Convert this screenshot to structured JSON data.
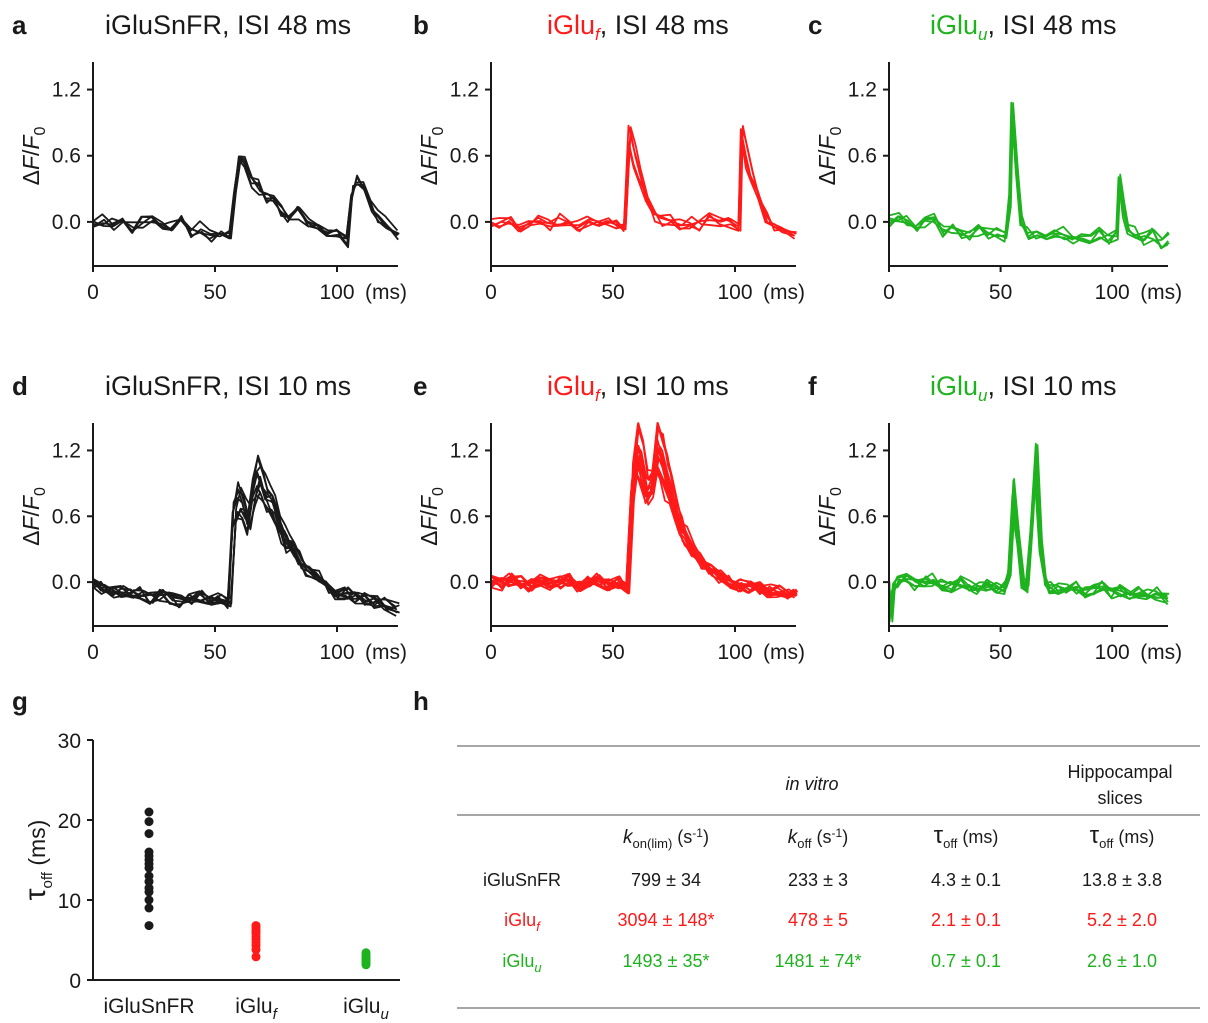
{
  "colors": {
    "iGluSnFR": "#1a1a1a",
    "iGlu_f": "#ff1a1a",
    "iGlu_u": "#1fb21f"
  },
  "chart_data": [
    {
      "panel": "a",
      "type": "line",
      "title": {
        "name": "iGluSnFR",
        "rest": ", ISI 48 ms",
        "color": "#1a1a1a"
      },
      "ylabel": "ΔF/F0",
      "xunit": "(ms)",
      "xlim": [
        0,
        125
      ],
      "ylim": [
        -0.4,
        1.45
      ],
      "xticks": [
        "0",
        "50",
        "100"
      ],
      "yticks": [
        "0.0",
        "0.6",
        "1.2"
      ],
      "traces": 5,
      "x": [
        0,
        4,
        8,
        12,
        16,
        20,
        24,
        28,
        32,
        36,
        40,
        44,
        48,
        52,
        56,
        58,
        60,
        62,
        65,
        68,
        71,
        74,
        77,
        80,
        84,
        88,
        92,
        96,
        100,
        104,
        106,
        108,
        111,
        114,
        117,
        120,
        125
      ],
      "y": [
        0,
        0.02,
        -0.02,
        0.03,
        -0.05,
        0,
        0.03,
        -0.03,
        -0.05,
        0,
        -0.08,
        -0.05,
        -0.12,
        -0.1,
        -0.1,
        0.25,
        0.55,
        0.5,
        0.35,
        0.3,
        0.2,
        0.18,
        0.1,
        0.05,
        0.08,
        0,
        -0.05,
        -0.1,
        -0.1,
        -0.18,
        0.25,
        0.35,
        0.3,
        0.15,
        0.05,
        0,
        -0.12
      ]
    },
    {
      "panel": "b",
      "type": "line",
      "title": {
        "name": "iGlu",
        "sub": "f",
        "rest": ", ISI 48 ms",
        "color": "#ff1a1a"
      },
      "ylabel": "ΔF/F0",
      "xunit": "(ms)",
      "xlim": [
        0,
        125
      ],
      "ylim": [
        -0.4,
        1.45
      ],
      "xticks": [
        "0",
        "50",
        "100"
      ],
      "yticks": [
        "0.0",
        "0.6",
        "1.2"
      ],
      "traces": 5,
      "x": [
        0,
        4,
        8,
        12,
        16,
        20,
        24,
        28,
        32,
        36,
        40,
        44,
        48,
        52,
        55,
        57,
        59,
        61,
        64,
        67,
        70,
        74,
        78,
        82,
        86,
        90,
        94,
        98,
        102,
        103,
        105,
        107,
        110,
        113,
        116,
        120,
        125
      ],
      "y": [
        0,
        -0.02,
        0.02,
        -0.03,
        0,
        0.03,
        -0.02,
        0.02,
        0,
        -0.03,
        0.02,
        0,
        -0.02,
        0,
        -0.05,
        0.75,
        0.55,
        0.4,
        0.2,
        0.05,
        0,
        0.02,
        -0.02,
        0,
        -0.03,
        0.02,
        0,
        -0.02,
        -0.05,
        0.75,
        0.55,
        0.4,
        0.2,
        0.05,
        -0.05,
        -0.08,
        -0.1
      ]
    },
    {
      "panel": "c",
      "type": "line",
      "title": {
        "name": "iGlu",
        "sub": "u",
        "rest": ", ISI 48 ms",
        "color": "#1fb21f"
      },
      "ylabel": "ΔF/F0",
      "xunit": "(ms)",
      "xlim": [
        0,
        125
      ],
      "ylim": [
        -0.4,
        1.45
      ],
      "xticks": [
        "0",
        "50",
        "100"
      ],
      "yticks": [
        "0.0",
        "0.6",
        "1.2"
      ],
      "traces": 5,
      "x": [
        0,
        4,
        8,
        12,
        16,
        20,
        24,
        28,
        32,
        36,
        40,
        44,
        48,
        52,
        54,
        55,
        57,
        59,
        62,
        66,
        70,
        74,
        78,
        82,
        86,
        90,
        94,
        98,
        102,
        103,
        105,
        107,
        110,
        114,
        118,
        122,
        125
      ],
      "y": [
        0,
        0.05,
        0.02,
        -0.05,
        0,
        0.02,
        -0.08,
        -0.05,
        -0.1,
        -0.12,
        -0.08,
        -0.1,
        -0.1,
        -0.12,
        0.2,
        1.1,
        0.5,
        0,
        -0.1,
        -0.12,
        -0.15,
        -0.12,
        -0.1,
        -0.18,
        -0.12,
        -0.15,
        -0.1,
        -0.15,
        -0.12,
        0.4,
        0.1,
        -0.05,
        -0.1,
        -0.15,
        -0.12,
        -0.18,
        -0.15
      ]
    },
    {
      "panel": "d",
      "type": "line",
      "title": {
        "name": "iGluSnFR",
        "rest": ", ISI 10 ms",
        "color": "#1a1a1a"
      },
      "ylabel": "ΔF/F0",
      "xunit": "(ms)",
      "xlim": [
        0,
        125
      ],
      "ylim": [
        -0.4,
        1.45
      ],
      "xticks": [
        "0",
        "50",
        "100"
      ],
      "yticks": [
        "0.0",
        "0.6",
        "1.2"
      ],
      "traces": 10,
      "x": [
        0,
        4,
        8,
        12,
        16,
        20,
        24,
        28,
        32,
        36,
        40,
        44,
        48,
        52,
        56,
        58,
        60,
        62,
        64,
        66,
        68,
        70,
        72,
        74,
        76,
        78,
        80,
        82,
        85,
        88,
        92,
        96,
        100,
        104,
        108,
        112,
        116,
        120,
        125
      ],
      "y": [
        0,
        -0.05,
        -0.1,
        -0.08,
        -0.12,
        -0.1,
        -0.15,
        -0.12,
        -0.15,
        -0.18,
        -0.15,
        -0.12,
        -0.18,
        -0.15,
        -0.18,
        0.6,
        0.75,
        0.65,
        0.55,
        0.8,
        0.95,
        0.85,
        0.75,
        0.7,
        0.55,
        0.45,
        0.35,
        0.3,
        0.2,
        0.1,
        0.05,
        -0.05,
        -0.1,
        -0.1,
        -0.15,
        -0.15,
        -0.18,
        -0.2,
        -0.25
      ]
    },
    {
      "panel": "e",
      "type": "line",
      "title": {
        "name": "iGlu",
        "sub": "f",
        "rest": ", ISI 10 ms",
        "color": "#ff1a1a"
      },
      "ylabel": "ΔF/F0",
      "xunit": "(ms)",
      "xlim": [
        0,
        125
      ],
      "ylim": [
        -0.4,
        1.45
      ],
      "xticks": [
        "0",
        "50",
        "100"
      ],
      "yticks": [
        "0.0",
        "0.6",
        "1.2"
      ],
      "traces": 14,
      "x": [
        0,
        4,
        8,
        12,
        16,
        20,
        24,
        28,
        32,
        36,
        40,
        44,
        48,
        52,
        56,
        58,
        60,
        62,
        64,
        66,
        68,
        70,
        72,
        74,
        76,
        78,
        80,
        83,
        86,
        90,
        94,
        98,
        102,
        106,
        110,
        114,
        118,
        122,
        125
      ],
      "y": [
        0,
        -0.02,
        0.02,
        0,
        -0.03,
        0.02,
        -0.02,
        0,
        0.02,
        -0.03,
        0,
        0.02,
        -0.02,
        0,
        -0.05,
        0.9,
        1.25,
        1.1,
        0.85,
        0.9,
        1.25,
        1.15,
        0.95,
        0.8,
        0.65,
        0.5,
        0.4,
        0.3,
        0.2,
        0.12,
        0.05,
        0,
        -0.03,
        -0.05,
        -0.05,
        -0.08,
        -0.08,
        -0.1,
        -0.1
      ]
    },
    {
      "panel": "f",
      "type": "line",
      "title": {
        "name": "iGlu",
        "sub": "u",
        "rest": ", ISI 10 ms",
        "color": "#1fb21f"
      },
      "ylabel": "ΔF/F0",
      "xunit": "(ms)",
      "xlim": [
        0,
        125
      ],
      "ylim": [
        -0.4,
        1.45
      ],
      "xticks": [
        "0",
        "50",
        "100"
      ],
      "yticks": [
        "0.0",
        "0.6",
        "1.2"
      ],
      "traces": 8,
      "x": [
        0,
        1,
        2,
        4,
        8,
        12,
        16,
        20,
        24,
        28,
        32,
        36,
        40,
        44,
        48,
        52,
        54,
        56,
        58,
        60,
        62,
        64,
        66,
        68,
        70,
        72,
        76,
        80,
        84,
        88,
        92,
        96,
        100,
        104,
        108,
        112,
        116,
        120,
        125
      ],
      "y": [
        0,
        -0.3,
        -0.05,
        0,
        0.02,
        -0.02,
        0,
        0.02,
        -0.02,
        -0.05,
        0,
        -0.02,
        -0.05,
        -0.02,
        -0.05,
        -0.05,
        0.1,
        0.8,
        0.4,
        0,
        -0.05,
        0.5,
        1.15,
        0.4,
        0,
        -0.05,
        -0.05,
        -0.08,
        -0.05,
        -0.1,
        -0.08,
        -0.05,
        -0.1,
        -0.08,
        -0.12,
        -0.1,
        -0.12,
        -0.1,
        -0.15
      ]
    },
    {
      "panel": "g",
      "type": "scatter",
      "ylabel": "τoff (ms)",
      "ylim": [
        0,
        30
      ],
      "yticks": [
        "0",
        "10",
        "20",
        "30"
      ],
      "categories": [
        "iGluSnFR",
        "iGlu_f",
        "iGlu_u"
      ],
      "series": [
        {
          "category": "iGluSnFR",
          "values": [
            21,
            19.8,
            18.3,
            16,
            15.5,
            15,
            14.5,
            14,
            13,
            12.3,
            11.5,
            11,
            10,
            9,
            6.8
          ]
        },
        {
          "category": "iGlu_f",
          "values": [
            6.8,
            6.5,
            6.2,
            6,
            5.8,
            5.4,
            5.1,
            4.7,
            4.3,
            3.8,
            2.9
          ]
        },
        {
          "category": "iGlu_u",
          "values": [
            3.4,
            3.1,
            2.9,
            2.7,
            2.5,
            2.3,
            2.1,
            1.9
          ]
        }
      ]
    }
  ],
  "panel_labels": {
    "g": "g",
    "h": "h"
  },
  "category_labels": [
    {
      "name": "iGluSnFR",
      "sub": "",
      "color": "#1a1a1a"
    },
    {
      "name": "iGlu",
      "sub": "f",
      "color": "#ff1a1a"
    },
    {
      "name": "iGlu",
      "sub": "u",
      "color": "#1fb21f"
    }
  ],
  "table": {
    "group_in_vitro": "in vitro",
    "group_slices_line1": "Hippocampal",
    "group_slices_line2": "slices",
    "columns": [
      {
        "sym": "k",
        "sub": "on(lim)",
        "unit": " (s",
        "sup": "-1",
        "close": ")"
      },
      {
        "sym": "k",
        "sub": "off",
        "unit": " (s",
        "sup": "-1",
        "close": ")"
      },
      {
        "sym": "τ",
        "sub": "off",
        "unit": " (ms)",
        "sup": "",
        "close": ""
      },
      {
        "sym": "τ",
        "sub": "off",
        "unit": " (ms)",
        "sup": "",
        "close": ""
      }
    ],
    "rows": [
      {
        "name": "iGluSnFR",
        "sub": "",
        "color": "#1a1a1a",
        "values": [
          "799 ± 34",
          "233 ± 3",
          "4.3 ± 0.1",
          "13.8 ± 3.8"
        ]
      },
      {
        "name": "iGlu",
        "sub": "f",
        "color": "#ff1a1a",
        "values": [
          "3094 ± 148*",
          "478 ± 5",
          "2.1 ± 0.1",
          "5.2 ± 2.0"
        ]
      },
      {
        "name": "iGlu",
        "sub": "u",
        "color": "#1fb21f",
        "values": [
          "1493 ± 35*",
          "1481 ± 74*",
          "0.7 ± 0.1",
          "2.6 ± 1.0"
        ]
      }
    ]
  }
}
